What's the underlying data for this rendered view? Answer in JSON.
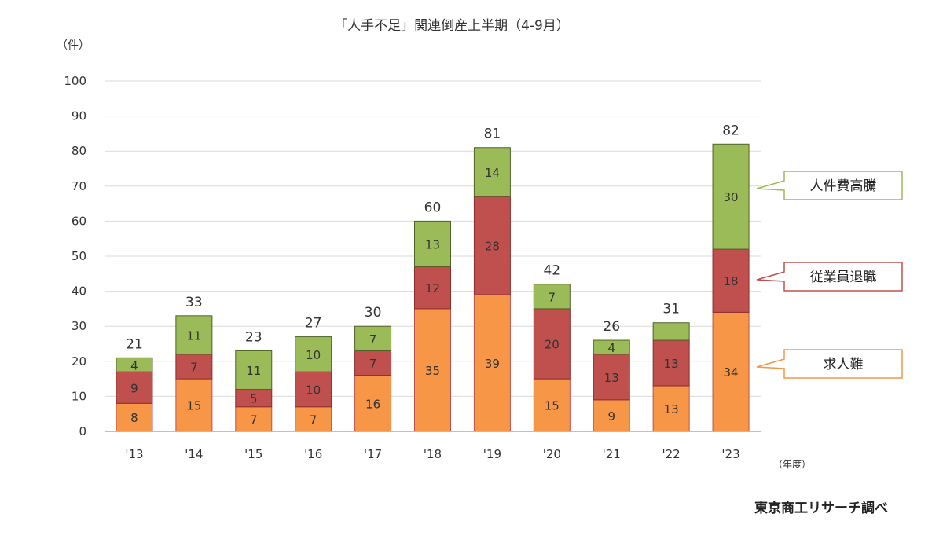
{
  "chart_data": {
    "type": "bar",
    "stacked": true,
    "title": "「人手不足」関連倒産上半期（4-9月）",
    "ylabel": "（件）",
    "xlabel": "（年度）",
    "ylim": [
      0,
      100
    ],
    "yticks": [
      0,
      10,
      20,
      30,
      40,
      50,
      60,
      70,
      80,
      90,
      100
    ],
    "grid": true,
    "categories": [
      "'13",
      "'14",
      "'15",
      "'16",
      "'17",
      "'18",
      "'19",
      "'20",
      "'21",
      "'22",
      "'23"
    ],
    "series": [
      {
        "name": "求人難",
        "color": "#f79646",
        "border": "#c0504d",
        "values": [
          8,
          15,
          7,
          7,
          16,
          35,
          39,
          15,
          9,
          13,
          34
        ],
        "labels": [
          "8",
          "15",
          "7",
          "7",
          "16",
          "35",
          "39",
          "15",
          "9",
          "13",
          "34"
        ]
      },
      {
        "name": "従業員退職",
        "color": "#c0504d",
        "border": "#8b2d2b",
        "values": [
          9,
          7,
          5,
          10,
          7,
          12,
          28,
          20,
          13,
          13,
          18
        ],
        "labels": [
          "9",
          "7",
          "5",
          "10",
          "7",
          "12",
          "28",
          "20",
          "13",
          "13",
          "18"
        ]
      },
      {
        "name": "人件費高騰",
        "color": "#9bbb59",
        "border": "#4f6228",
        "values": [
          4,
          11,
          11,
          10,
          7,
          13,
          14,
          7,
          4,
          5,
          30
        ],
        "labels": [
          "4",
          "11",
          "11",
          "10",
          "7",
          "13",
          "14",
          "7",
          "4",
          "",
          "30"
        ]
      }
    ],
    "totals": [
      21,
      33,
      23,
      27,
      30,
      60,
      81,
      42,
      26,
      31,
      82
    ],
    "legend": "callouts-right",
    "source": "東京商工リサーチ調べ"
  },
  "colors": {
    "grid": "#d9d9d9",
    "axis": "#808080"
  }
}
